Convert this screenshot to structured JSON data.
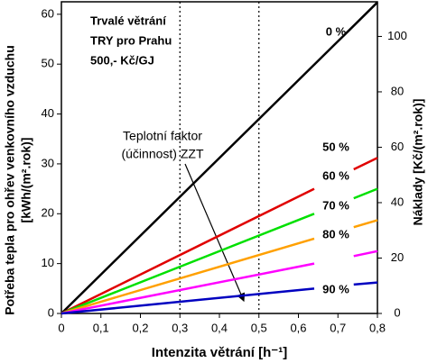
{
  "chart_data": {
    "type": "line",
    "x_label": "Intenzita větrání [h⁻¹]",
    "y_label": [
      "Potřeba tepla pro ohřev venkovního vzduchu",
      "[kWh/(m².rok)]"
    ],
    "y2_label": "Náklady [Kč/(m².rok)]",
    "info": [
      "Trvalé větrání",
      "TRY pro Prahu",
      "500,- Kč/GJ"
    ],
    "annotation": [
      "Teplotní faktor",
      "(účinnost) ZZT"
    ],
    "x": [
      0,
      0.64,
      0.69,
      0.74,
      0.8
    ],
    "series": [
      {
        "name": "0 %",
        "color": "#000000",
        "values": [
          0,
          49.9,
          53.8,
          57.7,
          62.4
        ]
      },
      {
        "name": "50 %",
        "color": "#e00000",
        "values": [
          0,
          25.0,
          null,
          28.9,
          31.2
        ]
      },
      {
        "name": "60 %",
        "color": "#00e000",
        "values": [
          0,
          20.0,
          null,
          23.1,
          25.0
        ]
      },
      {
        "name": "70 %",
        "color": "#ffa000",
        "values": [
          0,
          15.0,
          null,
          17.3,
          18.7
        ]
      },
      {
        "name": "80 %",
        "color": "#ff00ff",
        "values": [
          0,
          10.0,
          null,
          11.5,
          12.5
        ]
      },
      {
        "name": "90 %",
        "color": "#0000c0",
        "values": [
          0,
          5.0,
          null,
          5.8,
          6.2
        ]
      }
    ],
    "xlim": [
      0,
      0.8
    ],
    "xticks": [
      0,
      {
        "value": 0.1,
        "label": "0,1"
      },
      {
        "value": 0.2,
        "label": "0,2"
      },
      {
        "value": 0.3,
        "label": "0,3"
      },
      {
        "value": 0.4,
        "label": "0,4"
      },
      {
        "value": 0.5,
        "label": "0,5"
      },
      {
        "value": 0.6,
        "label": "0,6"
      },
      {
        "value": 0.7,
        "label": "0,7"
      },
      {
        "value": 0.8,
        "label": "0,8"
      }
    ],
    "ylim": [
      0,
      62.5
    ],
    "yticks": [
      0,
      10,
      20,
      30,
      40,
      50,
      60
    ],
    "y2lim": [
      0,
      112.5
    ],
    "y2ticks": [
      0,
      20,
      40,
      60,
      80,
      100
    ],
    "vlines": [
      0.3,
      0.5
    ]
  }
}
